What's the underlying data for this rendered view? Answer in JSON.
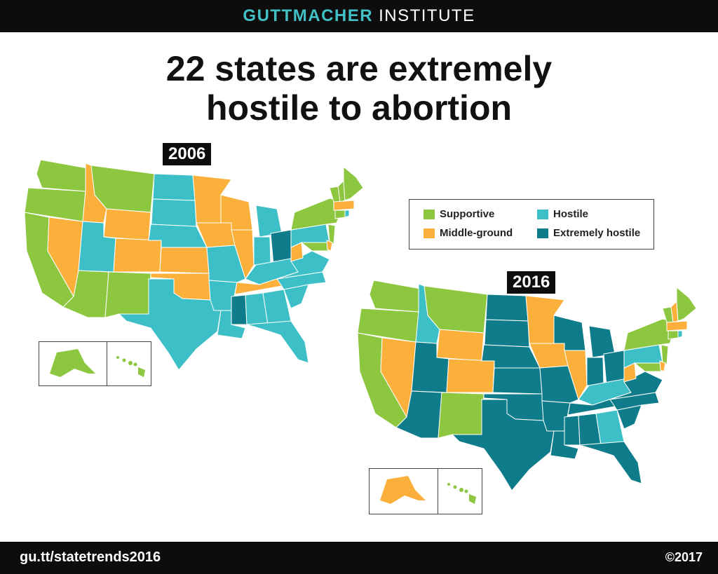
{
  "header": {
    "brand": "GUTTMACHER",
    "institute": "INSTITUTE"
  },
  "headline": {
    "line1": "22 states are extremely",
    "line2": "hostile to abortion"
  },
  "maps": {
    "m2006": {
      "year": "2006"
    },
    "m2016": {
      "year": "2016"
    }
  },
  "colors": {
    "supportive": "#8dc63f",
    "middle": "#fbb03b",
    "hostile": "#3dbfc8",
    "extreme": "#0e7c8a"
  },
  "legend": {
    "supportive": "Supportive",
    "middle": "Middle-ground",
    "hostile": "Hostile",
    "extreme": "Extremely hostile"
  },
  "footer": {
    "url": "gu.tt/statetrends2016",
    "copyright": "©2017"
  }
}
